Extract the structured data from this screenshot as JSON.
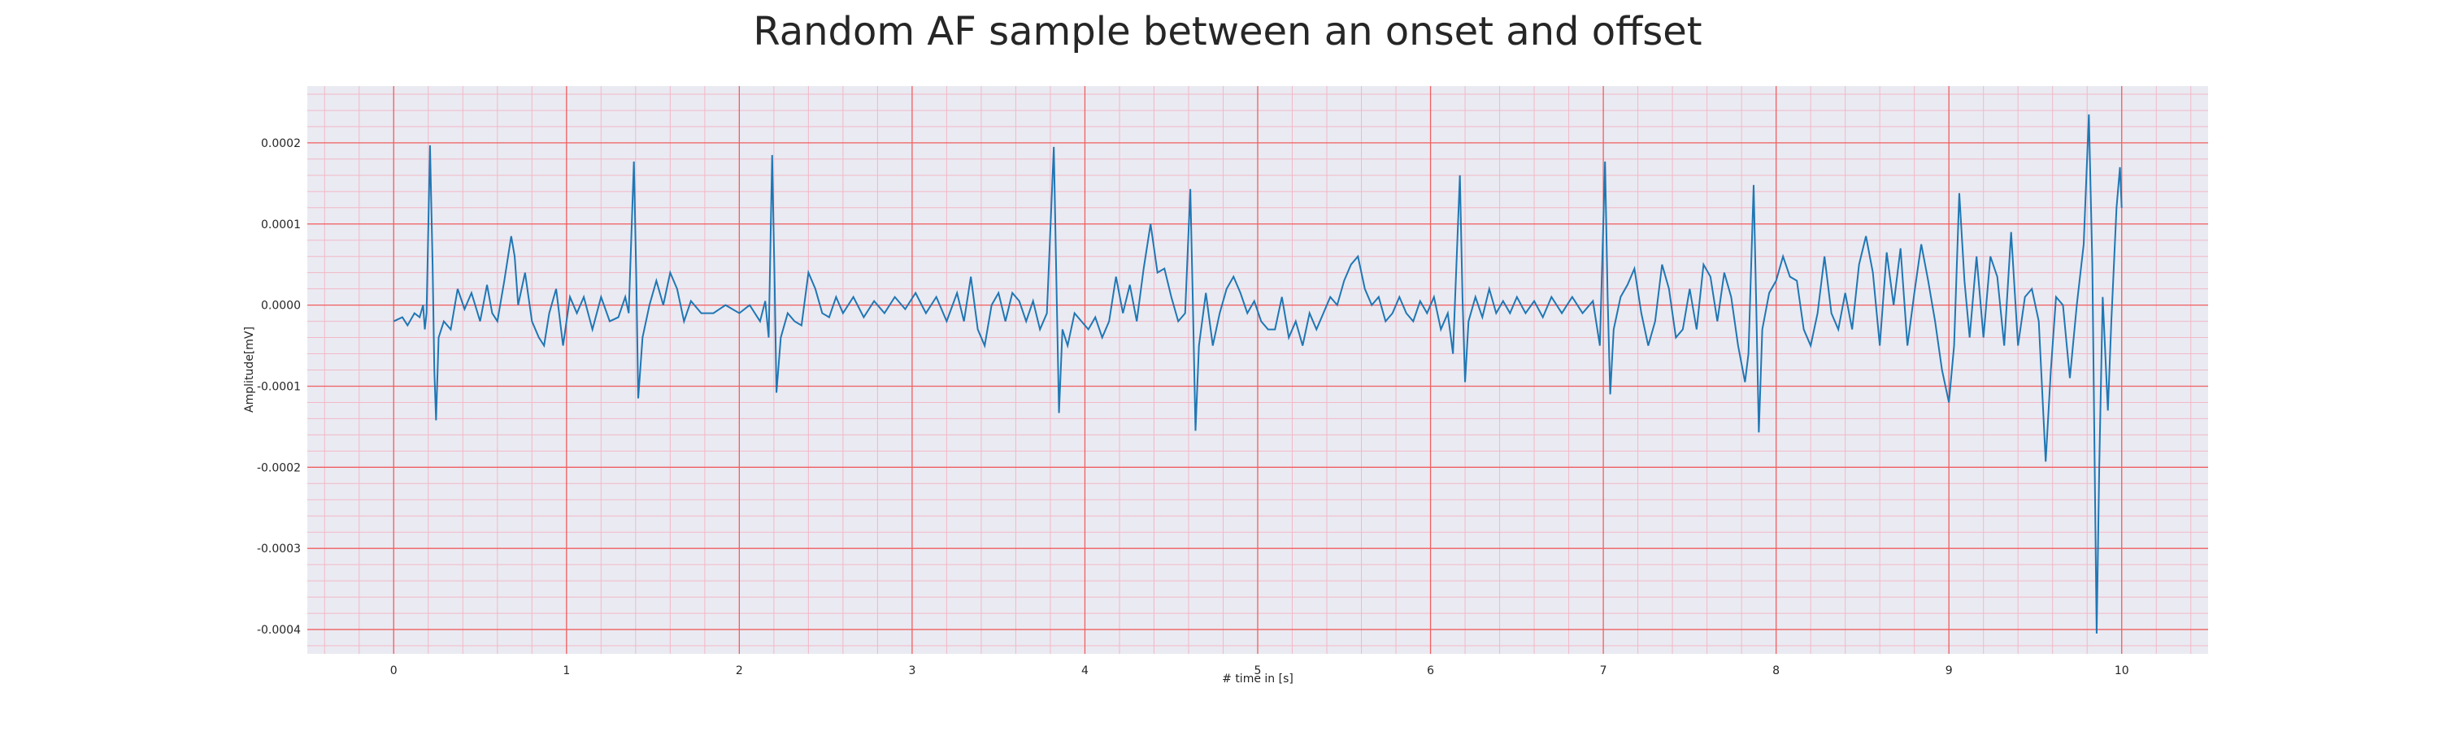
{
  "chart_data": {
    "type": "line",
    "title": "Random AF sample between an onset and offset",
    "xlabel": "# time in [s]",
    "ylabel": "Amplitude[mV]",
    "xlim": [
      -0.5,
      10.5
    ],
    "ylim": [
      -0.00043,
      0.00027
    ],
    "x_ticks": [
      0,
      1,
      2,
      3,
      4,
      5,
      6,
      7,
      8,
      9,
      10
    ],
    "x_tick_labels": [
      "0",
      "1",
      "2",
      "3",
      "4",
      "5",
      "6",
      "7",
      "8",
      "9",
      "10"
    ],
    "y_ticks": [
      0.0002,
      0.0001,
      0.0,
      -0.0001,
      -0.0002,
      -0.0003,
      -0.0004
    ],
    "y_tick_labels": [
      "0.0002",
      "0.0001",
      "0.0000",
      "-0.0001",
      "-0.0002",
      "-0.0003",
      "-0.0004"
    ],
    "grid": true,
    "minor_grid": true,
    "colors": {
      "line": "#1f77b4",
      "plot_background": "#eaeaf2",
      "major_grid": "#f06060",
      "minor_grid": "#f2b8c6"
    },
    "series": [
      {
        "points": [
          [
            0.0,
            -2e-05
          ],
          [
            0.05,
            -1.5e-05
          ],
          [
            0.08,
            -2.5e-05
          ],
          [
            0.12,
            -1e-05
          ],
          [
            0.15,
            -1.5e-05
          ],
          [
            0.17,
            0.0
          ],
          [
            0.18,
            -3e-05
          ],
          [
            0.19,
            -1e-05
          ],
          [
            0.21,
            0.000197
          ],
          [
            0.225,
            5e-05
          ],
          [
            0.235,
            -8e-05
          ],
          [
            0.245,
            -0.000142
          ],
          [
            0.26,
            -4e-05
          ],
          [
            0.29,
            -2e-05
          ],
          [
            0.33,
            -3e-05
          ],
          [
            0.37,
            2e-05
          ],
          [
            0.41,
            -5e-06
          ],
          [
            0.45,
            1.5e-05
          ],
          [
            0.5,
            -2e-05
          ],
          [
            0.54,
            2.5e-05
          ],
          [
            0.57,
            -1e-05
          ],
          [
            0.6,
            -2e-05
          ],
          [
            0.64,
            3e-05
          ],
          [
            0.68,
            8.5e-05
          ],
          [
            0.7,
            6e-05
          ],
          [
            0.72,
            0.0
          ],
          [
            0.76,
            4e-05
          ],
          [
            0.8,
            -2e-05
          ],
          [
            0.84,
            -4e-05
          ],
          [
            0.87,
            -5e-05
          ],
          [
            0.9,
            -1e-05
          ],
          [
            0.94,
            2e-05
          ],
          [
            0.98,
            -5e-05
          ],
          [
            1.02,
            1e-05
          ],
          [
            1.06,
            -1e-05
          ],
          [
            1.1,
            1e-05
          ],
          [
            1.15,
            -3e-05
          ],
          [
            1.2,
            1e-05
          ],
          [
            1.25,
            -2e-05
          ],
          [
            1.3,
            -1.5e-05
          ],
          [
            1.34,
            1e-05
          ],
          [
            1.36,
            -1e-05
          ],
          [
            1.39,
            0.000177
          ],
          [
            1.405,
            2e-05
          ],
          [
            1.415,
            -0.000115
          ],
          [
            1.44,
            -4e-05
          ],
          [
            1.48,
            0.0
          ],
          [
            1.52,
            3e-05
          ],
          [
            1.56,
            0.0
          ],
          [
            1.6,
            4e-05
          ],
          [
            1.64,
            2e-05
          ],
          [
            1.68,
            -2e-05
          ],
          [
            1.72,
            5e-06
          ],
          [
            1.78,
            -1e-05
          ],
          [
            1.85,
            -1e-05
          ],
          [
            1.92,
            0.0
          ],
          [
            2.0,
            -1e-05
          ],
          [
            2.06,
            0.0
          ],
          [
            2.12,
            -2e-05
          ],
          [
            2.15,
            5e-06
          ],
          [
            2.17,
            -4e-05
          ],
          [
            2.19,
            0.000185
          ],
          [
            2.205,
            2e-05
          ],
          [
            2.215,
            -0.000108
          ],
          [
            2.24,
            -4e-05
          ],
          [
            2.28,
            -1e-05
          ],
          [
            2.32,
            -2e-05
          ],
          [
            2.36,
            -2.5e-05
          ],
          [
            2.4,
            4e-05
          ],
          [
            2.44,
            2e-05
          ],
          [
            2.48,
            -1e-05
          ],
          [
            2.52,
            -1.5e-05
          ],
          [
            2.56,
            1e-05
          ],
          [
            2.6,
            -1e-05
          ],
          [
            2.66,
            1e-05
          ],
          [
            2.72,
            -1.5e-05
          ],
          [
            2.78,
            5e-06
          ],
          [
            2.84,
            -1e-05
          ],
          [
            2.9,
            1e-05
          ],
          [
            2.96,
            -5e-06
          ],
          [
            3.02,
            1.5e-05
          ],
          [
            3.08,
            -1e-05
          ],
          [
            3.14,
            1e-05
          ],
          [
            3.2,
            -2e-05
          ],
          [
            3.26,
            1.5e-05
          ],
          [
            3.3,
            -2e-05
          ],
          [
            3.34,
            3.5e-05
          ],
          [
            3.38,
            -3e-05
          ],
          [
            3.42,
            -5e-05
          ],
          [
            3.46,
            0.0
          ],
          [
            3.5,
            1.5e-05
          ],
          [
            3.54,
            -2e-05
          ],
          [
            3.58,
            1.5e-05
          ],
          [
            3.62,
            5e-06
          ],
          [
            3.66,
            -2e-05
          ],
          [
            3.7,
            5e-06
          ],
          [
            3.74,
            -3e-05
          ],
          [
            3.78,
            -1e-05
          ],
          [
            3.82,
            0.000195
          ],
          [
            3.835,
            3e-05
          ],
          [
            3.85,
            -0.000133
          ],
          [
            3.87,
            -3e-05
          ],
          [
            3.9,
            -5e-05
          ],
          [
            3.94,
            -1e-05
          ],
          [
            3.98,
            -2e-05
          ],
          [
            4.02,
            -3e-05
          ],
          [
            4.06,
            -1.5e-05
          ],
          [
            4.1,
            -4e-05
          ],
          [
            4.14,
            -2e-05
          ],
          [
            4.18,
            3.5e-05
          ],
          [
            4.22,
            -1e-05
          ],
          [
            4.26,
            2.5e-05
          ],
          [
            4.3,
            -2e-05
          ],
          [
            4.34,
            4.5e-05
          ],
          [
            4.38,
            0.0001
          ],
          [
            4.42,
            4e-05
          ],
          [
            4.46,
            4.5e-05
          ],
          [
            4.5,
            1e-05
          ],
          [
            4.54,
            -2e-05
          ],
          [
            4.58,
            -1e-05
          ],
          [
            4.61,
            0.000143
          ],
          [
            4.625,
            0.0
          ],
          [
            4.64,
            -0.000155
          ],
          [
            4.66,
            -5e-05
          ],
          [
            4.7,
            1.5e-05
          ],
          [
            4.74,
            -5e-05
          ],
          [
            4.78,
            -1e-05
          ],
          [
            4.82,
            2e-05
          ],
          [
            4.86,
            3.5e-05
          ],
          [
            4.9,
            1.5e-05
          ],
          [
            4.94,
            -1e-05
          ],
          [
            4.98,
            5e-06
          ],
          [
            5.02,
            -2e-05
          ],
          [
            5.06,
            -3e-05
          ],
          [
            5.1,
            -3e-05
          ],
          [
            5.14,
            1e-05
          ],
          [
            5.18,
            -4e-05
          ],
          [
            5.22,
            -2e-05
          ],
          [
            5.26,
            -5e-05
          ],
          [
            5.3,
            -1e-05
          ],
          [
            5.34,
            -3e-05
          ],
          [
            5.38,
            -1e-05
          ],
          [
            5.42,
            1e-05
          ],
          [
            5.46,
            0.0
          ],
          [
            5.5,
            3e-05
          ],
          [
            5.54,
            5e-05
          ],
          [
            5.58,
            6e-05
          ],
          [
            5.62,
            2e-05
          ],
          [
            5.66,
            0.0
          ],
          [
            5.7,
            1e-05
          ],
          [
            5.74,
            -2e-05
          ],
          [
            5.78,
            -1e-05
          ],
          [
            5.82,
            1e-05
          ],
          [
            5.86,
            -1e-05
          ],
          [
            5.9,
            -2e-05
          ],
          [
            5.94,
            5e-06
          ],
          [
            5.98,
            -1e-05
          ],
          [
            6.02,
            1e-05
          ],
          [
            6.06,
            -3e-05
          ],
          [
            6.1,
            -1e-05
          ],
          [
            6.13,
            -6e-05
          ],
          [
            6.17,
            0.00016
          ],
          [
            6.185,
            1e-05
          ],
          [
            6.2,
            -9.5e-05
          ],
          [
            6.22,
            -2e-05
          ],
          [
            6.26,
            1e-05
          ],
          [
            6.3,
            -1.5e-05
          ],
          [
            6.34,
            2e-05
          ],
          [
            6.38,
            -1e-05
          ],
          [
            6.42,
            5e-06
          ],
          [
            6.46,
            -1e-05
          ],
          [
            6.5,
            1e-05
          ],
          [
            6.55,
            -1e-05
          ],
          [
            6.6,
            5e-06
          ],
          [
            6.65,
            -1.5e-05
          ],
          [
            6.7,
            1e-05
          ],
          [
            6.76,
            -1e-05
          ],
          [
            6.82,
            1e-05
          ],
          [
            6.88,
            -1e-05
          ],
          [
            6.94,
            5e-06
          ],
          [
            6.98,
            -5e-05
          ],
          [
            7.01,
            0.000177
          ],
          [
            7.025,
            1e-05
          ],
          [
            7.04,
            -0.00011
          ],
          [
            7.06,
            -3e-05
          ],
          [
            7.1,
            1e-05
          ],
          [
            7.14,
            2.5e-05
          ],
          [
            7.18,
            4.5e-05
          ],
          [
            7.22,
            -1e-05
          ],
          [
            7.26,
            -5e-05
          ],
          [
            7.3,
            -2e-05
          ],
          [
            7.34,
            5e-05
          ],
          [
            7.38,
            2e-05
          ],
          [
            7.42,
            -4e-05
          ],
          [
            7.46,
            -3e-05
          ],
          [
            7.5,
            2e-05
          ],
          [
            7.54,
            -3e-05
          ],
          [
            7.58,
            5e-05
          ],
          [
            7.62,
            3.5e-05
          ],
          [
            7.66,
            -2e-05
          ],
          [
            7.7,
            4e-05
          ],
          [
            7.74,
            1e-05
          ],
          [
            7.78,
            -5e-05
          ],
          [
            7.82,
            -9.5e-05
          ],
          [
            7.84,
            -6e-05
          ],
          [
            7.87,
            0.000148
          ],
          [
            7.885,
            0.0
          ],
          [
            7.9,
            -0.000157
          ],
          [
            7.92,
            -3e-05
          ],
          [
            7.96,
            1.5e-05
          ],
          [
            8.0,
            3e-05
          ],
          [
            8.04,
            6e-05
          ],
          [
            8.08,
            3.5e-05
          ],
          [
            8.12,
            3e-05
          ],
          [
            8.16,
            -3e-05
          ],
          [
            8.2,
            -5e-05
          ],
          [
            8.24,
            -1e-05
          ],
          [
            8.28,
            6e-05
          ],
          [
            8.32,
            -1e-05
          ],
          [
            8.36,
            -3e-05
          ],
          [
            8.4,
            1.5e-05
          ],
          [
            8.44,
            -3e-05
          ],
          [
            8.48,
            5e-05
          ],
          [
            8.52,
            8.5e-05
          ],
          [
            8.56,
            4e-05
          ],
          [
            8.6,
            -5e-05
          ],
          [
            8.64,
            6.5e-05
          ],
          [
            8.68,
            0.0
          ],
          [
            8.72,
            7e-05
          ],
          [
            8.76,
            -5e-05
          ],
          [
            8.8,
            1.5e-05
          ],
          [
            8.84,
            7.5e-05
          ],
          [
            8.88,
            3e-05
          ],
          [
            8.92,
            -2e-05
          ],
          [
            8.96,
            -8e-05
          ],
          [
            9.0,
            -0.00012
          ],
          [
            9.03,
            -5e-05
          ],
          [
            9.06,
            0.000138
          ],
          [
            9.09,
            3e-05
          ],
          [
            9.12,
            -4e-05
          ],
          [
            9.16,
            6e-05
          ],
          [
            9.2,
            -4e-05
          ],
          [
            9.24,
            6e-05
          ],
          [
            9.28,
            3.5e-05
          ],
          [
            9.32,
            -5e-05
          ],
          [
            9.36,
            9e-05
          ],
          [
            9.4,
            -5e-05
          ],
          [
            9.44,
            1e-05
          ],
          [
            9.48,
            2e-05
          ],
          [
            9.52,
            -2e-05
          ],
          [
            9.56,
            -0.000193
          ],
          [
            9.59,
            -8e-05
          ],
          [
            9.62,
            1e-05
          ],
          [
            9.66,
            0.0
          ],
          [
            9.7,
            -9e-05
          ],
          [
            9.74,
            0.0
          ],
          [
            9.78,
            7.5e-05
          ],
          [
            9.81,
            0.000235
          ],
          [
            9.83,
            5e-05
          ],
          [
            9.855,
            -0.000405
          ],
          [
            9.87,
            -0.0002
          ],
          [
            9.89,
            1e-05
          ],
          [
            9.92,
            -0.00013
          ],
          [
            9.94,
            -2e-05
          ],
          [
            9.97,
            0.00012
          ],
          [
            9.99,
            0.00017
          ],
          [
            10.0,
            0.00012
          ]
        ]
      }
    ]
  }
}
